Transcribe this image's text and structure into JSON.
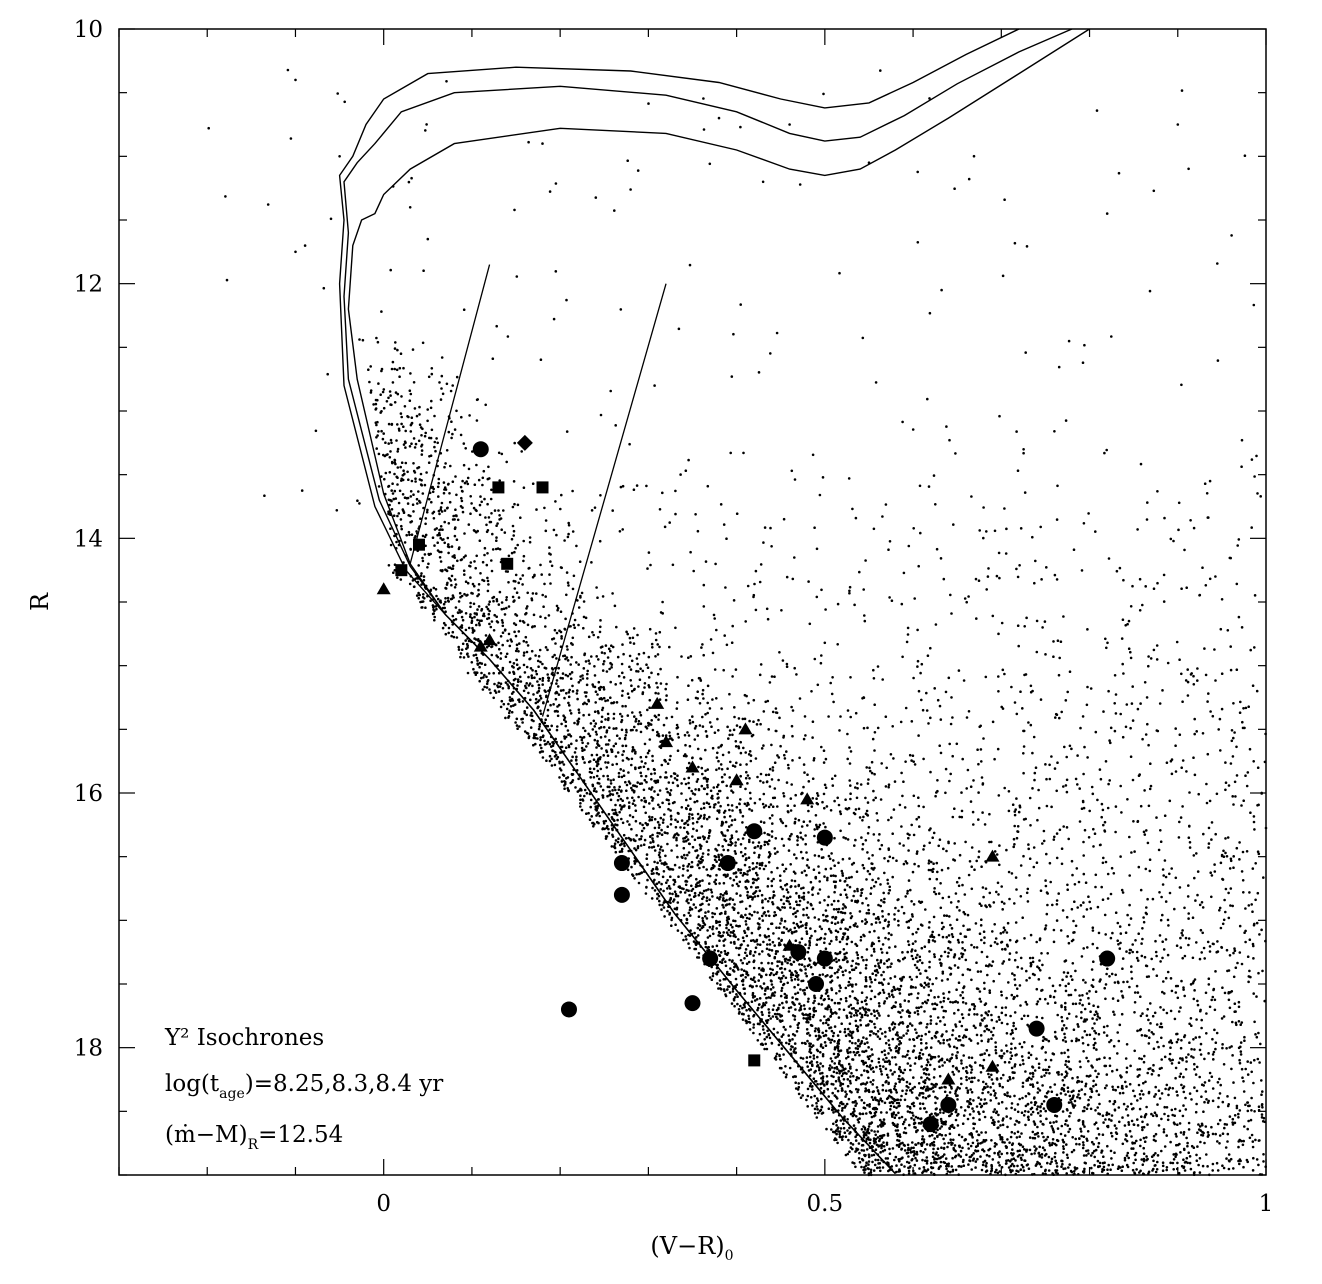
{
  "chart_data": {
    "type": "scatter",
    "title": "",
    "xlabel": {
      "main": "(V−R)",
      "sub": "0"
    },
    "ylabel": "R",
    "xlim": [
      -0.3,
      1.0
    ],
    "ylim": [
      19.0,
      10.0
    ],
    "y_inverted": true,
    "grid": false,
    "x_ticks": [
      {
        "value": 0,
        "label": "0"
      },
      {
        "value": 0.5,
        "label": "0.5"
      },
      {
        "value": 1,
        "label": "1"
      }
    ],
    "y_ticks": [
      {
        "value": 10,
        "label": "10"
      },
      {
        "value": 12,
        "label": "12"
      },
      {
        "value": 14,
        "label": "14"
      },
      {
        "value": 16,
        "label": "16"
      },
      {
        "value": 18,
        "label": "18"
      }
    ],
    "annotations": {
      "line1": "Y² Isochrones",
      "line2_pre": "log(t",
      "line2_sub": "age",
      "line2_post": ")=8.25,8.3,8.4 yr",
      "line3_pre": "(ṁ−M)",
      "line3_sub": "R",
      "line3_post": "=12.54"
    },
    "isochrones": [
      {
        "log_age": 8.25,
        "points": [
          [
            0.58,
            18.99
          ],
          [
            0.52,
            18.55
          ],
          [
            0.46,
            18.05
          ],
          [
            0.4,
            17.55
          ],
          [
            0.33,
            16.95
          ],
          [
            0.27,
            16.35
          ],
          [
            0.22,
            15.85
          ],
          [
            0.17,
            15.35
          ],
          [
            0.12,
            14.95
          ],
          [
            0.07,
            14.6
          ],
          [
            0.03,
            14.2
          ],
          [
            0.0,
            13.65
          ],
          [
            -0.03,
            12.75
          ],
          [
            -0.04,
            12.2
          ],
          [
            -0.035,
            11.7
          ],
          [
            -0.025,
            11.5
          ],
          [
            -0.01,
            11.45
          ],
          [
            0.0,
            11.3
          ],
          [
            0.03,
            11.1
          ],
          [
            0.08,
            10.9
          ],
          [
            0.2,
            10.78
          ],
          [
            0.32,
            10.82
          ],
          [
            0.4,
            10.95
          ],
          [
            0.46,
            11.1
          ],
          [
            0.5,
            11.15
          ],
          [
            0.54,
            11.1
          ],
          [
            0.58,
            10.95
          ],
          [
            0.64,
            10.7
          ],
          [
            0.72,
            10.35
          ],
          [
            0.8,
            10.0
          ]
        ]
      },
      {
        "log_age": 8.3,
        "points": [
          [
            0.58,
            18.99
          ],
          [
            0.52,
            18.55
          ],
          [
            0.46,
            18.05
          ],
          [
            0.4,
            17.55
          ],
          [
            0.33,
            16.95
          ],
          [
            0.27,
            16.35
          ],
          [
            0.22,
            15.85
          ],
          [
            0.17,
            15.35
          ],
          [
            0.12,
            14.95
          ],
          [
            0.07,
            14.6
          ],
          [
            0.03,
            14.22
          ],
          [
            -0.005,
            13.7
          ],
          [
            -0.04,
            12.75
          ],
          [
            -0.045,
            12.1
          ],
          [
            -0.04,
            11.6
          ],
          [
            -0.045,
            11.2
          ],
          [
            -0.03,
            11.05
          ],
          [
            -0.01,
            10.9
          ],
          [
            0.02,
            10.65
          ],
          [
            0.08,
            10.5
          ],
          [
            0.2,
            10.45
          ],
          [
            0.32,
            10.52
          ],
          [
            0.4,
            10.65
          ],
          [
            0.46,
            10.82
          ],
          [
            0.5,
            10.88
          ],
          [
            0.54,
            10.85
          ],
          [
            0.59,
            10.68
          ],
          [
            0.65,
            10.43
          ],
          [
            0.72,
            10.18
          ],
          [
            0.78,
            10.0
          ]
        ]
      },
      {
        "log_age": 8.4,
        "points": [
          [
            0.58,
            18.99
          ],
          [
            0.52,
            18.55
          ],
          [
            0.46,
            18.05
          ],
          [
            0.4,
            17.55
          ],
          [
            0.33,
            16.95
          ],
          [
            0.27,
            16.35
          ],
          [
            0.22,
            15.85
          ],
          [
            0.17,
            15.35
          ],
          [
            0.12,
            14.95
          ],
          [
            0.07,
            14.6
          ],
          [
            0.025,
            14.25
          ],
          [
            -0.01,
            13.75
          ],
          [
            -0.045,
            12.8
          ],
          [
            -0.05,
            12.0
          ],
          [
            -0.045,
            11.5
          ],
          [
            -0.05,
            11.15
          ],
          [
            -0.035,
            11.0
          ],
          [
            -0.02,
            10.75
          ],
          [
            0.0,
            10.55
          ],
          [
            0.05,
            10.35
          ],
          [
            0.15,
            10.3
          ],
          [
            0.28,
            10.33
          ],
          [
            0.38,
            10.42
          ],
          [
            0.45,
            10.55
          ],
          [
            0.5,
            10.62
          ],
          [
            0.55,
            10.58
          ],
          [
            0.6,
            10.42
          ],
          [
            0.66,
            10.2
          ],
          [
            0.72,
            10.0
          ]
        ]
      }
    ],
    "reference_lines": [
      {
        "points": [
          [
            0.03,
            14.2
          ],
          [
            0.12,
            11.85
          ]
        ]
      },
      {
        "points": [
          [
            0.18,
            15.4
          ],
          [
            0.32,
            12.0
          ]
        ]
      }
    ],
    "series": [
      {
        "marker": "circle",
        "points": [
          [
            0.11,
            13.3
          ],
          [
            0.27,
            16.55
          ],
          [
            0.27,
            16.8
          ],
          [
            0.21,
            17.7
          ],
          [
            0.35,
            17.65
          ],
          [
            0.37,
            17.3
          ],
          [
            0.39,
            16.55
          ],
          [
            0.42,
            16.3
          ],
          [
            0.47,
            17.25
          ],
          [
            0.49,
            17.5
          ],
          [
            0.5,
            17.3
          ],
          [
            0.5,
            16.35
          ],
          [
            0.62,
            18.6
          ],
          [
            0.64,
            18.45
          ],
          [
            0.74,
            17.85
          ],
          [
            0.76,
            18.45
          ],
          [
            0.82,
            17.3
          ]
        ]
      },
      {
        "marker": "square",
        "points": [
          [
            0.13,
            13.6
          ],
          [
            0.18,
            13.6
          ],
          [
            0.04,
            14.05
          ],
          [
            0.02,
            14.25
          ],
          [
            0.14,
            14.2
          ],
          [
            0.42,
            18.1
          ]
        ]
      },
      {
        "marker": "diamond",
        "points": [
          [
            0.16,
            13.25
          ]
        ]
      },
      {
        "marker": "triangle",
        "points": [
          [
            0.0,
            14.4
          ],
          [
            0.12,
            14.8
          ],
          [
            0.11,
            14.85
          ],
          [
            0.31,
            15.3
          ],
          [
            0.32,
            15.6
          ],
          [
            0.35,
            15.8
          ],
          [
            0.41,
            15.5
          ],
          [
            0.4,
            15.9
          ],
          [
            0.48,
            16.05
          ],
          [
            0.46,
            17.2
          ],
          [
            0.69,
            16.5
          ],
          [
            0.69,
            18.15
          ],
          [
            0.64,
            18.25
          ]
        ]
      }
    ],
    "field_stars": {
      "description_of_density": "dense dotted field population",
      "sample_points": [
        [
          -0.1,
          10.4
        ],
        [
          0.18,
          10.9
        ],
        [
          0.38,
          10.7
        ],
        [
          0.46,
          10.75
        ],
        [
          0.9,
          10.75
        ],
        [
          -0.05,
          11.0
        ],
        [
          0.55,
          11.05
        ],
        [
          0.43,
          11.2
        ],
        [
          0.03,
          11.4
        ],
        [
          -0.1,
          11.75
        ],
        [
          0.82,
          11.45
        ],
        [
          0.05,
          11.65
        ]
      ]
    }
  }
}
